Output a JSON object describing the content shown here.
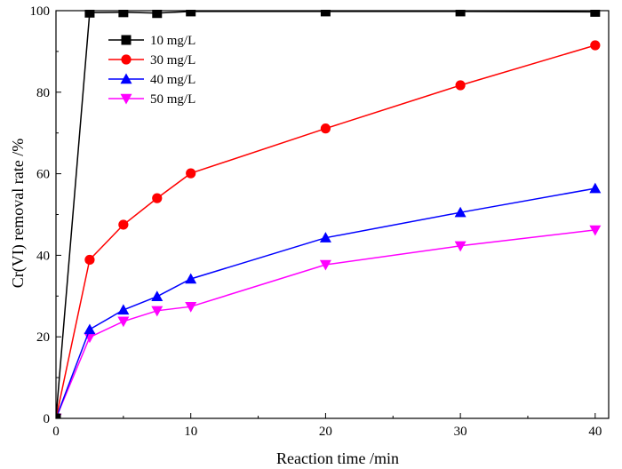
{
  "chart_data": {
    "type": "line",
    "title": "",
    "xlabel": "Reaction time /min",
    "ylabel": "Cr(VI) removal rate /%",
    "xlim": [
      0,
      41
    ],
    "ylim": [
      0,
      100
    ],
    "xticks": [
      0,
      10,
      20,
      30,
      40
    ],
    "yticks": [
      0,
      20,
      40,
      60,
      80,
      100
    ],
    "x": [
      0,
      2.5,
      5,
      7.5,
      10,
      20,
      30,
      40
    ],
    "legend_position": "top-left",
    "series": [
      {
        "name": "10 mg/L",
        "color": "#000000",
        "marker": "square",
        "values": [
          0,
          99.5,
          99.6,
          99.4,
          99.8,
          99.8,
          99.8,
          99.7
        ]
      },
      {
        "name": "30 mg/L",
        "color": "#ff0000",
        "marker": "circle",
        "values": [
          0,
          38.9,
          47.5,
          54.0,
          60.1,
          71.1,
          81.7,
          91.5
        ]
      },
      {
        "name": "40 mg/L",
        "color": "#0000ff",
        "marker": "triangle-up",
        "values": [
          0,
          21.8,
          26.6,
          29.9,
          34.2,
          44.3,
          50.5,
          56.4
        ]
      },
      {
        "name": "50 mg/L",
        "color": "#ff00ff",
        "marker": "triangle-down",
        "values": [
          0,
          19.9,
          23.8,
          26.4,
          27.4,
          37.7,
          42.3,
          46.2
        ]
      }
    ]
  }
}
